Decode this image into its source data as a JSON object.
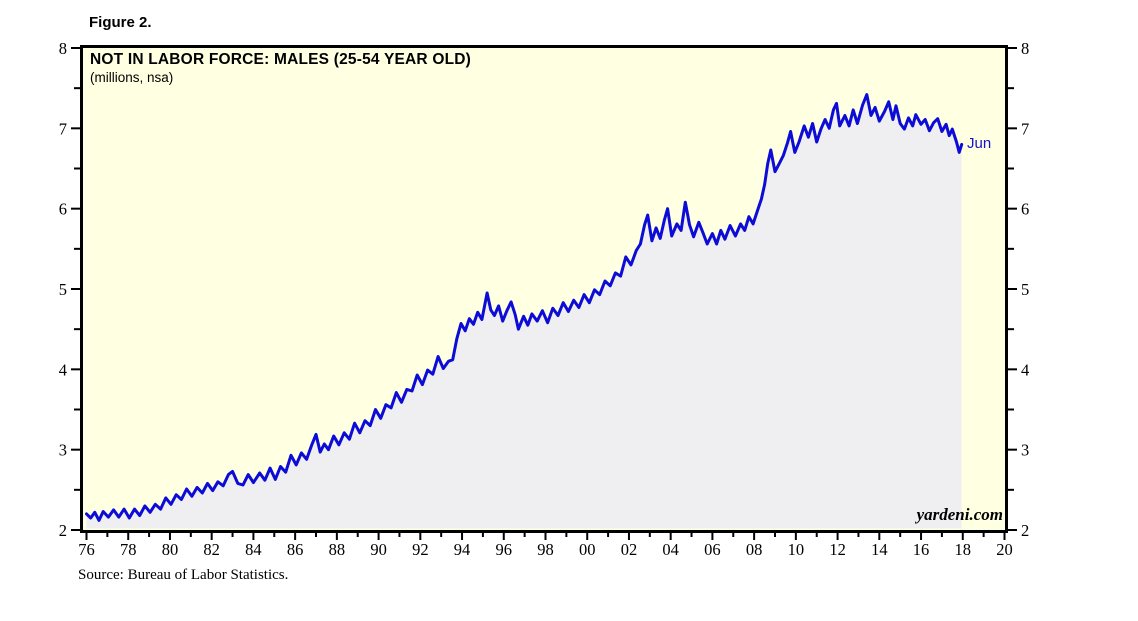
{
  "page": {
    "figure_label": "Figure 2.",
    "source_note": "Source: Bureau of Labor Statistics."
  },
  "chart_data": {
    "type": "area",
    "title": "NOT IN LABOR FORCE: MALES (25-54 YEAR OLD)",
    "subtitle": "(millions, nsa)",
    "series_name": "Not in labor force, males 25-54 years old, millions, not seasonally adjusted",
    "last_point_label": "Jun",
    "watermark": "yardeni.com",
    "xlabel": "",
    "ylabel": "",
    "ylim": [
      2,
      8
    ],
    "xlim_years": [
      1975.7,
      2020.6
    ],
    "grid": "off",
    "legend": "none",
    "axis_note": "year tick labels centered at mid-year; y labels on both left and right sides",
    "y_ticks_major": [
      2,
      3,
      4,
      5,
      6,
      7,
      8
    ],
    "y_tick_labels": [
      "2",
      "3",
      "4",
      "5",
      "6",
      "7",
      "8"
    ],
    "y_ticks_minor": [
      2.5,
      3.5,
      4.5,
      5.5,
      6.5,
      7.5
    ],
    "x_tick_years": [
      1976,
      1978,
      1980,
      1982,
      1984,
      1986,
      1988,
      1990,
      1992,
      1994,
      1996,
      1998,
      2000,
      2002,
      2004,
      2006,
      2008,
      2010,
      2012,
      2014,
      2016,
      2018,
      2020
    ],
    "x_tick_labels": [
      "76",
      "78",
      "80",
      "82",
      "84",
      "86",
      "88",
      "90",
      "92",
      "94",
      "96",
      "98",
      "00",
      "02",
      "04",
      "06",
      "08",
      "10",
      "12",
      "14",
      "16",
      "18",
      "20"
    ],
    "x_ticks_minor_years": [
      1977,
      1979,
      1981,
      1983,
      1985,
      1987,
      1989,
      1991,
      1993,
      1995,
      1997,
      1999,
      2001,
      2003,
      2005,
      2007,
      2009,
      2011,
      2013,
      2015,
      2017,
      2019
    ],
    "colors": {
      "plot_background": "#FFFFE1",
      "area_fill": "#EFEFF2",
      "line": "#0C0CD6",
      "axis": "#000000",
      "label_blue": "#1414CC"
    },
    "points": [
      [
        1976.5,
        2.2
      ],
      [
        1976.7,
        2.15
      ],
      [
        1976.9,
        2.22
      ],
      [
        1977.1,
        2.12
      ],
      [
        1977.3,
        2.23
      ],
      [
        1977.55,
        2.16
      ],
      [
        1977.8,
        2.25
      ],
      [
        1978.05,
        2.16
      ],
      [
        1978.3,
        2.26
      ],
      [
        1978.55,
        2.15
      ],
      [
        1978.8,
        2.26
      ],
      [
        1979.05,
        2.18
      ],
      [
        1979.3,
        2.3
      ],
      [
        1979.55,
        2.22
      ],
      [
        1979.8,
        2.32
      ],
      [
        1980.05,
        2.26
      ],
      [
        1980.3,
        2.4
      ],
      [
        1980.55,
        2.32
      ],
      [
        1980.8,
        2.44
      ],
      [
        1981.05,
        2.38
      ],
      [
        1981.3,
        2.51
      ],
      [
        1981.55,
        2.42
      ],
      [
        1981.8,
        2.53
      ],
      [
        1982.05,
        2.46
      ],
      [
        1982.3,
        2.58
      ],
      [
        1982.55,
        2.49
      ],
      [
        1982.8,
        2.6
      ],
      [
        1983.05,
        2.55
      ],
      [
        1983.3,
        2.69
      ],
      [
        1983.5,
        2.73
      ],
      [
        1983.75,
        2.58
      ],
      [
        1984.0,
        2.56
      ],
      [
        1984.25,
        2.69
      ],
      [
        1984.5,
        2.59
      ],
      [
        1984.8,
        2.71
      ],
      [
        1985.05,
        2.62
      ],
      [
        1985.3,
        2.77
      ],
      [
        1985.55,
        2.63
      ],
      [
        1985.8,
        2.79
      ],
      [
        1986.05,
        2.72
      ],
      [
        1986.3,
        2.93
      ],
      [
        1986.55,
        2.81
      ],
      [
        1986.8,
        2.96
      ],
      [
        1987.05,
        2.88
      ],
      [
        1987.3,
        3.06
      ],
      [
        1987.5,
        3.19
      ],
      [
        1987.7,
        2.97
      ],
      [
        1987.9,
        3.07
      ],
      [
        1988.1,
        3.0
      ],
      [
        1988.35,
        3.17
      ],
      [
        1988.6,
        3.06
      ],
      [
        1988.85,
        3.21
      ],
      [
        1989.1,
        3.13
      ],
      [
        1989.35,
        3.33
      ],
      [
        1989.6,
        3.21
      ],
      [
        1989.85,
        3.36
      ],
      [
        1990.1,
        3.3
      ],
      [
        1990.35,
        3.5
      ],
      [
        1990.6,
        3.39
      ],
      [
        1990.85,
        3.56
      ],
      [
        1991.1,
        3.52
      ],
      [
        1991.35,
        3.71
      ],
      [
        1991.6,
        3.59
      ],
      [
        1991.85,
        3.75
      ],
      [
        1992.1,
        3.73
      ],
      [
        1992.35,
        3.93
      ],
      [
        1992.6,
        3.81
      ],
      [
        1992.85,
        3.99
      ],
      [
        1993.1,
        3.94
      ],
      [
        1993.35,
        4.16
      ],
      [
        1993.6,
        4.01
      ],
      [
        1993.85,
        4.1
      ],
      [
        1994.05,
        4.12
      ],
      [
        1994.25,
        4.38
      ],
      [
        1994.45,
        4.57
      ],
      [
        1994.65,
        4.48
      ],
      [
        1994.85,
        4.63
      ],
      [
        1995.05,
        4.56
      ],
      [
        1995.25,
        4.71
      ],
      [
        1995.45,
        4.62
      ],
      [
        1995.7,
        4.95
      ],
      [
        1995.88,
        4.74
      ],
      [
        1996.05,
        4.67
      ],
      [
        1996.25,
        4.79
      ],
      [
        1996.45,
        4.6
      ],
      [
        1996.65,
        4.73
      ],
      [
        1996.85,
        4.84
      ],
      [
        1997.05,
        4.68
      ],
      [
        1997.2,
        4.5
      ],
      [
        1997.45,
        4.66
      ],
      [
        1997.65,
        4.55
      ],
      [
        1997.85,
        4.69
      ],
      [
        1998.1,
        4.6
      ],
      [
        1998.35,
        4.73
      ],
      [
        1998.6,
        4.58
      ],
      [
        1998.85,
        4.76
      ],
      [
        1999.1,
        4.67
      ],
      [
        1999.35,
        4.83
      ],
      [
        1999.6,
        4.72
      ],
      [
        1999.85,
        4.86
      ],
      [
        2000.1,
        4.77
      ],
      [
        2000.35,
        4.93
      ],
      [
        2000.6,
        4.83
      ],
      [
        2000.85,
        4.99
      ],
      [
        2001.1,
        4.93
      ],
      [
        2001.35,
        5.1
      ],
      [
        2001.6,
        5.04
      ],
      [
        2001.85,
        5.2
      ],
      [
        2002.1,
        5.16
      ],
      [
        2002.35,
        5.4
      ],
      [
        2002.6,
        5.3
      ],
      [
        2002.85,
        5.48
      ],
      [
        2003.05,
        5.56
      ],
      [
        2003.25,
        5.8
      ],
      [
        2003.4,
        5.92
      ],
      [
        2003.6,
        5.6
      ],
      [
        2003.8,
        5.76
      ],
      [
        2004.0,
        5.63
      ],
      [
        2004.2,
        5.86
      ],
      [
        2004.35,
        6.0
      ],
      [
        2004.55,
        5.66
      ],
      [
        2004.8,
        5.81
      ],
      [
        2005.0,
        5.73
      ],
      [
        2005.2,
        6.08
      ],
      [
        2005.4,
        5.8
      ],
      [
        2005.6,
        5.65
      ],
      [
        2005.85,
        5.83
      ],
      [
        2006.05,
        5.7
      ],
      [
        2006.25,
        5.56
      ],
      [
        2006.5,
        5.69
      ],
      [
        2006.7,
        5.56
      ],
      [
        2006.9,
        5.73
      ],
      [
        2007.1,
        5.62
      ],
      [
        2007.35,
        5.79
      ],
      [
        2007.6,
        5.66
      ],
      [
        2007.85,
        5.81
      ],
      [
        2008.05,
        5.73
      ],
      [
        2008.25,
        5.9
      ],
      [
        2008.45,
        5.81
      ],
      [
        2008.65,
        5.97
      ],
      [
        2008.85,
        6.12
      ],
      [
        2009.0,
        6.3
      ],
      [
        2009.15,
        6.56
      ],
      [
        2009.3,
        6.73
      ],
      [
        2009.5,
        6.46
      ],
      [
        2009.7,
        6.56
      ],
      [
        2009.9,
        6.66
      ],
      [
        2010.1,
        6.82
      ],
      [
        2010.25,
        6.96
      ],
      [
        2010.45,
        6.7
      ],
      [
        2010.65,
        6.83
      ],
      [
        2010.9,
        7.03
      ],
      [
        2011.1,
        6.89
      ],
      [
        2011.3,
        7.06
      ],
      [
        2011.5,
        6.83
      ],
      [
        2011.7,
        6.99
      ],
      [
        2011.9,
        7.11
      ],
      [
        2012.1,
        7.0
      ],
      [
        2012.3,
        7.23
      ],
      [
        2012.45,
        7.31
      ],
      [
        2012.6,
        7.03
      ],
      [
        2012.85,
        7.16
      ],
      [
        2013.05,
        7.03
      ],
      [
        2013.25,
        7.23
      ],
      [
        2013.45,
        7.06
      ],
      [
        2013.7,
        7.29
      ],
      [
        2013.9,
        7.42
      ],
      [
        2014.1,
        7.16
      ],
      [
        2014.3,
        7.26
      ],
      [
        2014.5,
        7.09
      ],
      [
        2014.75,
        7.21
      ],
      [
        2014.95,
        7.33
      ],
      [
        2015.15,
        7.11
      ],
      [
        2015.3,
        7.28
      ],
      [
        2015.5,
        7.06
      ],
      [
        2015.7,
        6.99
      ],
      [
        2015.9,
        7.13
      ],
      [
        2016.1,
        7.03
      ],
      [
        2016.25,
        7.17
      ],
      [
        2016.5,
        7.05
      ],
      [
        2016.7,
        7.11
      ],
      [
        2016.9,
        6.97
      ],
      [
        2017.1,
        7.07
      ],
      [
        2017.3,
        7.12
      ],
      [
        2017.5,
        6.96
      ],
      [
        2017.7,
        7.05
      ],
      [
        2017.85,
        6.91
      ],
      [
        2018.0,
        6.99
      ],
      [
        2018.2,
        6.83
      ],
      [
        2018.33,
        6.7
      ],
      [
        2018.45,
        6.8
      ]
    ]
  }
}
